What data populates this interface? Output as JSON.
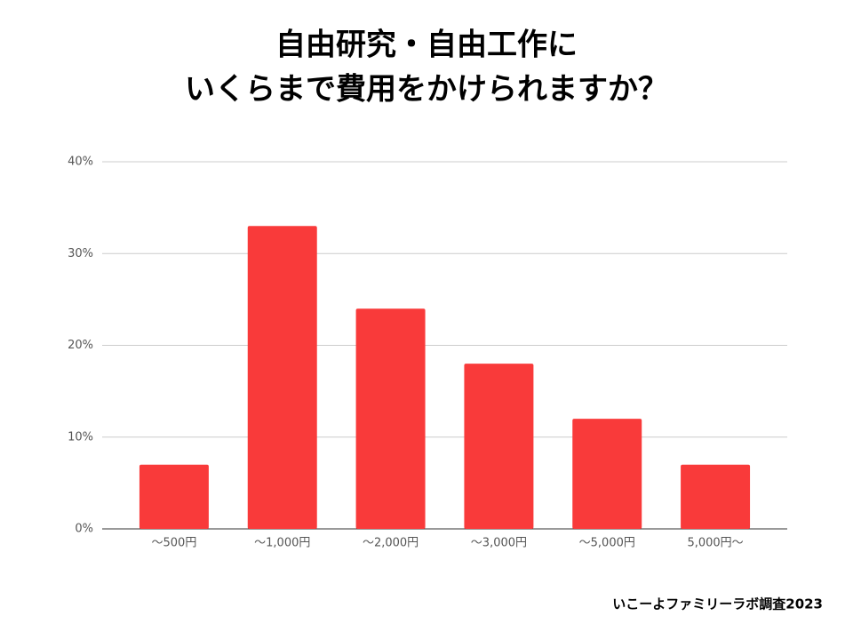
{
  "chart_data": {
    "type": "bar",
    "title": [
      "自由研究・自由工作に",
      "いくらまで費用をかけられますか？"
    ],
    "categories": [
      "～500円",
      "～1,000円",
      "～2,000円",
      "～3,000円",
      "～5,000円",
      "5,000円～"
    ],
    "values": [
      7,
      33,
      24,
      18,
      12,
      7
    ],
    "color": "#f93a3a",
    "ylim": [
      0,
      40
    ],
    "yticks": [
      {
        "value": 0,
        "label": "0%"
      },
      {
        "value": 10,
        "label": "10%"
      },
      {
        "value": 20,
        "label": "20%"
      },
      {
        "value": 30,
        "label": "30%"
      },
      {
        "value": 40,
        "label": "40%"
      }
    ],
    "grid": true,
    "source": "いこーよファミリーラボ調査2023"
  }
}
